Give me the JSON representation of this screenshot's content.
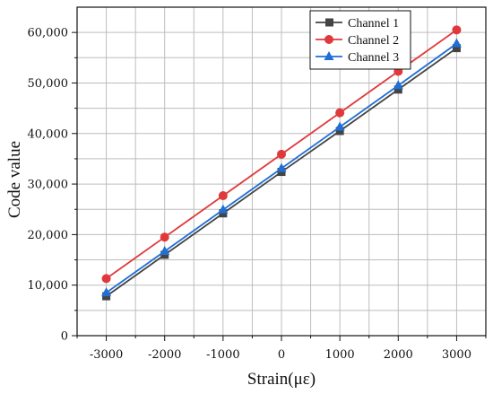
{
  "chart_data": {
    "type": "line",
    "title": "",
    "xlabel": "Strain(με)",
    "ylabel": "Code value",
    "x": [
      -3000,
      -2000,
      -1000,
      0,
      1000,
      2000,
      3000
    ],
    "x_tick_labels": [
      "-3000",
      "-2000",
      "-1000",
      "0",
      "1000",
      "2000",
      "3000"
    ],
    "y_ticks": [
      0,
      10000,
      20000,
      30000,
      40000,
      50000,
      60000
    ],
    "y_tick_labels": [
      "0",
      "10,000",
      "20,000",
      "30,000",
      "40,000",
      "50,000",
      "60,000"
    ],
    "xlim": [
      -3500,
      3500
    ],
    "ylim": [
      0,
      65000
    ],
    "grid": true,
    "legend_position": "top-right",
    "series": [
      {
        "name": "Channel 1",
        "color": "#444444",
        "marker": "square",
        "values": [
          7800,
          16000,
          24200,
          32400,
          40500,
          48700,
          56900
        ]
      },
      {
        "name": "Channel 2",
        "color": "#e0393b",
        "marker": "circle",
        "values": [
          11300,
          19500,
          27700,
          35900,
          44100,
          52300,
          60500
        ]
      },
      {
        "name": "Channel 3",
        "color": "#1f6fd6",
        "marker": "triangle",
        "values": [
          8500,
          16700,
          24900,
          33100,
          41300,
          49500,
          57800
        ]
      }
    ]
  }
}
